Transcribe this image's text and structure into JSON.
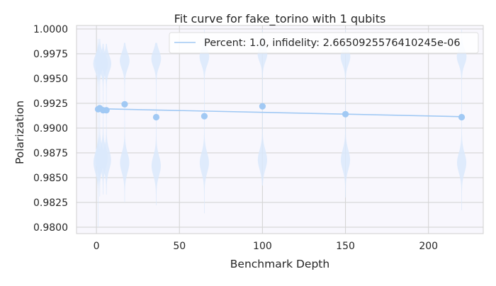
{
  "chart_data": {
    "type": "scatter",
    "title": "Fit curve for fake_torino with 1 qubits",
    "xlabel": "Benchmark Depth",
    "ylabel": "Polarization",
    "xlim": [
      -12,
      233
    ],
    "ylim": [
      0.97935,
      1.00035
    ],
    "xticks": [
      0,
      50,
      100,
      150,
      200
    ],
    "yticks": [
      0.98,
      0.9825,
      0.985,
      0.9875,
      0.99,
      0.9925,
      0.995,
      0.9975,
      1.0
    ],
    "ytick_labels": [
      "0.9800",
      "0.9825",
      "0.9850",
      "0.9875",
      "0.9900",
      "0.9925",
      "0.9950",
      "0.9975",
      "1.0000"
    ],
    "grid": true,
    "legend_position": "top-right",
    "series": [
      {
        "name": "Percent: 1.0, infidelity: 2.6650925576410245e-06",
        "kind": "fit-line",
        "color": "#a1c9f4",
        "x": [
          1,
          220
        ],
        "y": [
          0.99195,
          0.99115
        ]
      },
      {
        "kind": "points",
        "color": "#a1c9f4",
        "x": [
          1,
          2,
          4,
          6,
          17,
          36,
          65,
          100,
          150,
          220
        ],
        "y": [
          0.9919,
          0.992,
          0.9918,
          0.9918,
          0.9924,
          0.9911,
          0.9912,
          0.9922,
          0.9914,
          0.9911
        ]
      }
    ],
    "violins": {
      "color": "#dbe9fb",
      "items": [
        {
          "x": 1,
          "ymin": 0.98,
          "ymax": 0.999,
          "upper_center": 0.9965,
          "lower_center": 0.9865
        },
        {
          "x": 2,
          "ymin": 0.9831,
          "ymax": 0.999,
          "upper_center": 0.9968,
          "lower_center": 0.987
        },
        {
          "x": 4,
          "ymin": 0.9833,
          "ymax": 0.9985,
          "upper_center": 0.9965,
          "lower_center": 0.987
        },
        {
          "x": 6,
          "ymin": 0.9833,
          "ymax": 0.9985,
          "upper_center": 0.9965,
          "lower_center": 0.9868
        },
        {
          "x": 17,
          "ymin": 0.9825,
          "ymax": 0.9986,
          "upper_center": 0.9968,
          "lower_center": 0.9865
        },
        {
          "x": 36,
          "ymin": 0.9822,
          "ymax": 0.9986,
          "upper_center": 0.997,
          "lower_center": 0.9862
        },
        {
          "x": 65,
          "ymin": 0.9814,
          "ymax": 1.0,
          "upper_center": 0.9972,
          "lower_center": 0.9865
        },
        {
          "x": 100,
          "ymin": 0.9842,
          "ymax": 1.0,
          "upper_center": 0.9975,
          "lower_center": 0.9868
        },
        {
          "x": 150,
          "ymin": 0.983,
          "ymax": 1.0,
          "upper_center": 0.9972,
          "lower_center": 0.9868
        },
        {
          "x": 220,
          "ymin": 0.9817,
          "ymax": 1.0,
          "upper_center": 0.9972,
          "lower_center": 0.9865
        }
      ]
    }
  }
}
